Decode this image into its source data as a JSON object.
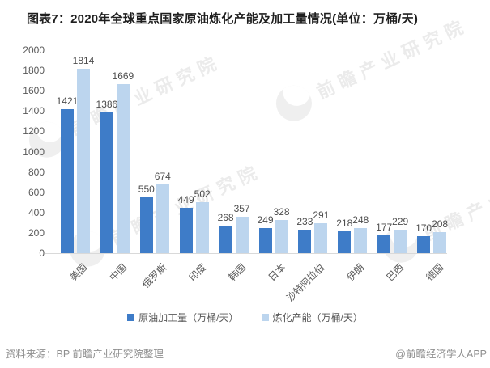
{
  "title": "图表7：2020年全球重点国家原油炼化产能及加工量情况(单位：万桶/天)",
  "watermark": {
    "text": "前瞻产业研究院"
  },
  "chart_data": {
    "type": "bar",
    "title": "图表7：2020年全球重点国家原油炼化产能及加工量情况(单位：万桶/天)",
    "unit": "万桶/天",
    "categories": [
      "美国",
      "中国",
      "俄罗斯",
      "印度",
      "韩国",
      "日本",
      "沙特阿拉伯",
      "伊朗",
      "巴西",
      "德国"
    ],
    "series": [
      {
        "name": "原油加工量（万桶/天）",
        "color": "#3E7CC8",
        "values": [
          1421,
          1386,
          550,
          449,
          268,
          249,
          233,
          218,
          177,
          170
        ]
      },
      {
        "name": "炼化产能（万桶/天）",
        "color": "#BCD5EE",
        "values": [
          1814,
          1669,
          674,
          502,
          357,
          328,
          291,
          248,
          229,
          208
        ]
      }
    ],
    "ylim": [
      0,
      2000
    ],
    "ytick_step": 200,
    "grid": false,
    "legend_position": "bottom"
  },
  "footer": {
    "source": "资料来源：BP 前瞻产业研究院整理",
    "brand": "@前瞻经济学人APP"
  }
}
